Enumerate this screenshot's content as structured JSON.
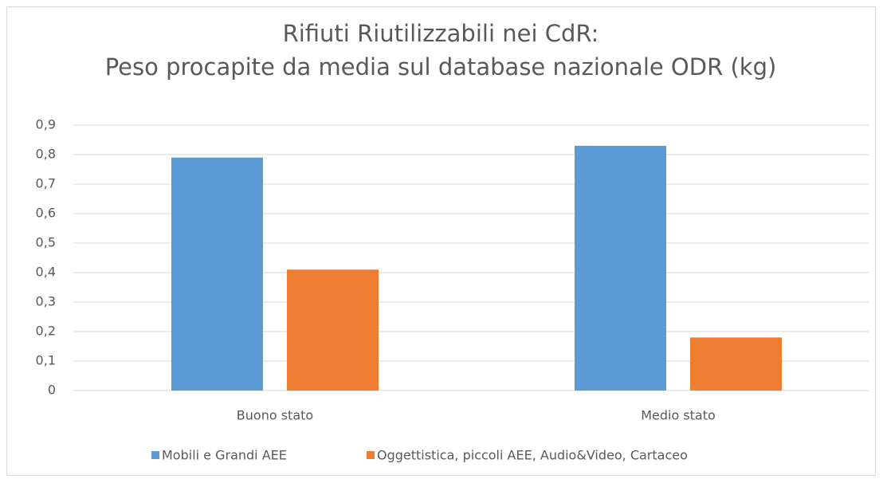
{
  "chart_data": {
    "type": "bar",
    "title": [
      "Rifiuti Riutilizzabili nei CdR:",
      "Peso procapite da media sul database nazionale ODR (kg)"
    ],
    "categories": [
      "Buono stato",
      "Medio stato"
    ],
    "series": [
      {
        "name": "Mobili e Grandi AEE",
        "color": "#5b9bd5",
        "values": [
          0.79,
          0.83
        ]
      },
      {
        "name": "Oggettistica, piccoli AEE, Audio&Video, Cartaceo",
        "color": "#ed7d31",
        "values": [
          0.41,
          0.18
        ]
      }
    ],
    "ylim": [
      0,
      0.9
    ],
    "yticks": [
      {
        "value": 0,
        "label": "0"
      },
      {
        "value": 0.1,
        "label": "0,1"
      },
      {
        "value": 0.2,
        "label": "0,2"
      },
      {
        "value": 0.3,
        "label": "0,3"
      },
      {
        "value": 0.4,
        "label": "0,4"
      },
      {
        "value": 0.5,
        "label": "0,5"
      },
      {
        "value": 0.6,
        "label": "0,6"
      },
      {
        "value": 0.7,
        "label": "0,7"
      },
      {
        "value": 0.8,
        "label": "0,8"
      },
      {
        "value": 0.9,
        "label": "0,9"
      }
    ],
    "grid": true,
    "legend": "bottom"
  }
}
